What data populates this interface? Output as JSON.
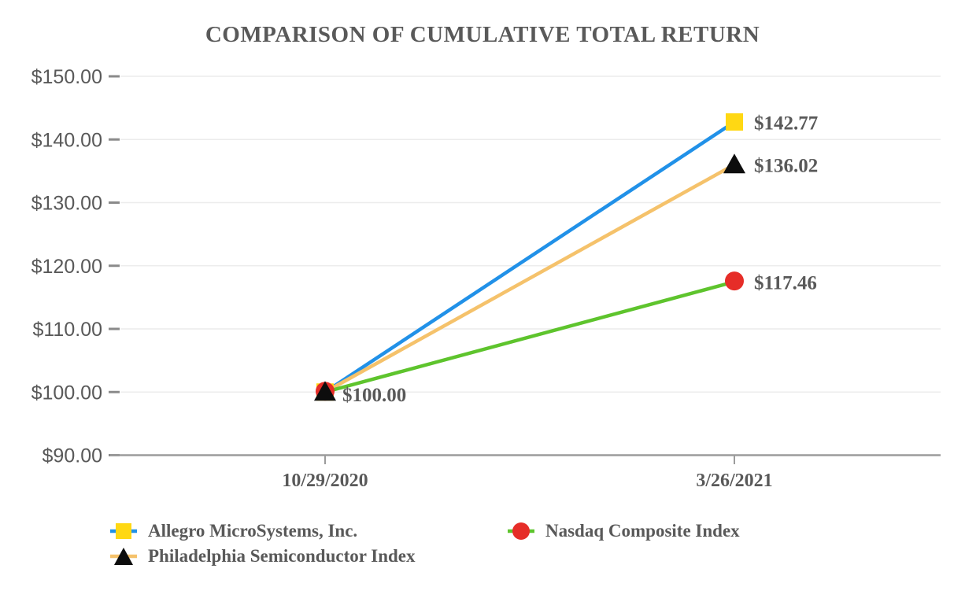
{
  "chart_data": {
    "type": "line",
    "title": "COMPARISON OF CUMULATIVE TOTAL RETURN",
    "categories": [
      "10/29/2020",
      "3/26/2021"
    ],
    "series": [
      {
        "name": "Allegro MicroSystems, Inc.",
        "values": [
          100.0,
          142.77
        ],
        "line_color": "#2191e8",
        "marker": "square",
        "marker_color": "#ffd813",
        "end_label": "$142.77"
      },
      {
        "name": "Philadelphia Semiconductor Index",
        "values": [
          100.0,
          136.02
        ],
        "line_color": "#f5c26b",
        "marker": "triangle",
        "marker_color": "#0d0d0d",
        "end_label": "$136.02"
      },
      {
        "name": "Nasdaq Composite Index",
        "values": [
          100.0,
          117.46
        ],
        "line_color": "#5ec42d",
        "marker": "circle",
        "marker_color": "#e62d28",
        "end_label": "$117.46"
      }
    ],
    "start_label": "$100.00",
    "y_axis": {
      "ylim": [
        90,
        150
      ],
      "ticks": [
        {
          "value": 150,
          "label": "$150.00"
        },
        {
          "value": 140,
          "label": "$140.00"
        },
        {
          "value": 130,
          "label": "$130.00"
        },
        {
          "value": 120,
          "label": "$120.00"
        },
        {
          "value": 110,
          "label": "$110.00"
        },
        {
          "value": 100,
          "label": "$100.00"
        },
        {
          "value": 90,
          "label": "$90.00"
        }
      ]
    },
    "grid": true,
    "legend_position": "bottom",
    "legend_order": [
      0,
      2,
      1
    ],
    "text_color": "#595959"
  }
}
